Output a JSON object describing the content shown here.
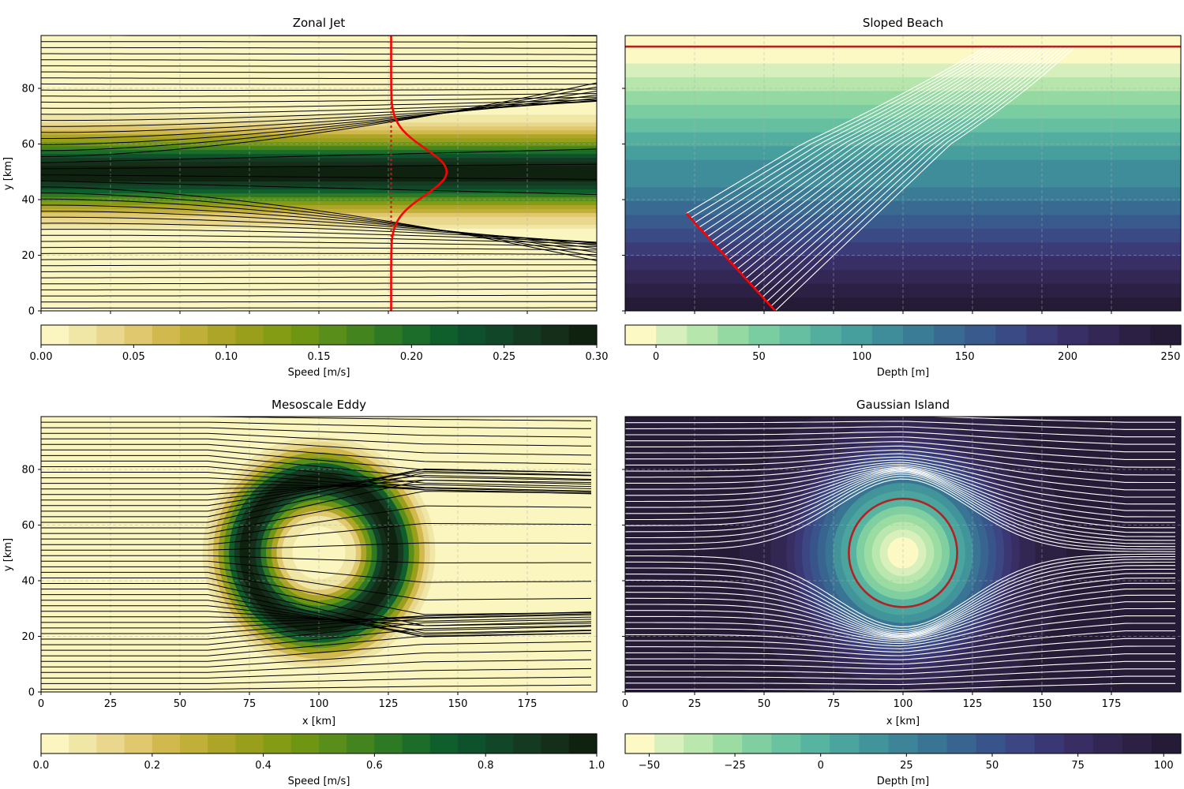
{
  "chart_data": [
    {
      "type": "heatmap",
      "title": "Zonal Jet",
      "xlabel": "",
      "ylabel": "y [km]",
      "xlim": [
        0,
        200
      ],
      "ylim": [
        0,
        99
      ],
      "xticks": [
        "0",
        "25",
        "50",
        "75",
        "100",
        "125",
        "150",
        "175"
      ],
      "xtick_values": [
        0,
        25,
        50,
        75,
        100,
        125,
        150,
        175
      ],
      "show_xticklabels": false,
      "yticks": [
        "0",
        "20",
        "40",
        "60",
        "80"
      ],
      "ytick_values": [
        0,
        20,
        40,
        60,
        80
      ],
      "show_yticklabels": true,
      "grid": true,
      "field": {
        "kind": "jet",
        "y0": 50,
        "width": 12,
        "max": 0.3
      },
      "streamlines": {
        "color": "#000000",
        "count": 46
      },
      "colorbar": {
        "label": "Speed [m/s]",
        "min": 0,
        "max": 0.3,
        "ticks": [
          "0.00",
          "0.05",
          "0.10",
          "0.15",
          "0.20",
          "0.25",
          "0.30"
        ],
        "tick_values": [
          0,
          0.05,
          0.1,
          0.15,
          0.2,
          0.25,
          0.3
        ],
        "levels": 20,
        "cmap": "speed"
      },
      "overlay": {
        "kind": "velocity-profile",
        "color": "#ff0000",
        "x_base": 126,
        "amplitude_km": 20
      }
    },
    {
      "type": "heatmap",
      "title": "Sloped Beach",
      "xlabel": "",
      "ylabel": "",
      "xlim": [
        0,
        200
      ],
      "ylim": [
        0,
        99
      ],
      "xticks": [
        "0",
        "25",
        "50",
        "75",
        "100",
        "125",
        "150",
        "175"
      ],
      "xtick_values": [
        0,
        25,
        50,
        75,
        100,
        125,
        150,
        175
      ],
      "show_xticklabels": false,
      "yticks": [
        "0",
        "20",
        "40",
        "60",
        "80"
      ],
      "ytick_values": [
        0,
        20,
        40,
        60,
        80
      ],
      "show_yticklabels": false,
      "grid": true,
      "field": {
        "kind": "slope",
        "depth_at_bottom": 250,
        "depth_at_top": -15
      },
      "streamlines": {
        "color": "#ffffff",
        "count": 22
      },
      "colorbar": {
        "label": "Depth [m]",
        "min": -15,
        "max": 255,
        "ticks": [
          "0",
          "50",
          "100",
          "150",
          "200",
          "250"
        ],
        "tick_values": [
          0,
          50,
          100,
          150,
          200,
          250
        ],
        "levels": 18,
        "cmap": "deep"
      },
      "overlay": {
        "kind": "shoreline",
        "color": "#b22222",
        "y": 95,
        "crest_color": "#ff0000"
      }
    },
    {
      "type": "heatmap",
      "title": "Mesoscale Eddy",
      "xlabel": "x [km]",
      "ylabel": "y [km]",
      "xlim": [
        0,
        200
      ],
      "ylim": [
        0,
        99
      ],
      "xticks": [
        "0",
        "25",
        "50",
        "75",
        "100",
        "125",
        "150",
        "175"
      ],
      "xtick_values": [
        0,
        25,
        50,
        75,
        100,
        125,
        150,
        175
      ],
      "show_xticklabels": true,
      "yticks": [
        "0",
        "20",
        "40",
        "60",
        "80"
      ],
      "ytick_values": [
        0,
        20,
        40,
        60,
        80
      ],
      "show_yticklabels": true,
      "grid": true,
      "field": {
        "kind": "eddy",
        "cx": 100,
        "cy": 50,
        "r0": 27,
        "width": 9,
        "max": 1.0
      },
      "streamlines": {
        "color": "#000000",
        "count": 50
      },
      "colorbar": {
        "label": "Speed [m/s]",
        "min": 0,
        "max": 1.0,
        "ticks": [
          "0.0",
          "0.2",
          "0.4",
          "0.6",
          "0.8",
          "1.0"
        ],
        "tick_values": [
          0,
          0.2,
          0.4,
          0.6,
          0.8,
          1.0
        ],
        "levels": 20,
        "cmap": "speed"
      }
    },
    {
      "type": "heatmap",
      "title": "Gaussian Island",
      "xlabel": "x [km]",
      "ylabel": "",
      "xlim": [
        0,
        200
      ],
      "ylim": [
        0,
        99
      ],
      "xticks": [
        "0",
        "25",
        "50",
        "75",
        "100",
        "125",
        "150",
        "175"
      ],
      "xtick_values": [
        0,
        25,
        50,
        75,
        100,
        125,
        150,
        175
      ],
      "show_xticklabels": true,
      "yticks": [
        "0",
        "20",
        "40",
        "60",
        "80"
      ],
      "ytick_values": [
        0,
        20,
        40,
        60,
        80
      ],
      "show_yticklabels": false,
      "grid": true,
      "field": {
        "kind": "island",
        "cx": 100,
        "cy": 50,
        "sigma": 28,
        "depth_far": 100,
        "depth_center": -55
      },
      "streamlines": {
        "color": "#ffffff",
        "count": 46
      },
      "colorbar": {
        "label": "Depth [m]",
        "min": -57,
        "max": 105,
        "ticks": [
          "−50",
          "−25",
          "0",
          "25",
          "50",
          "75",
          "100"
        ],
        "tick_values": [
          -50,
          -25,
          0,
          25,
          50,
          75,
          100
        ],
        "levels": 19,
        "cmap": "deep"
      },
      "overlay": {
        "kind": "coastline",
        "color": "#b22222",
        "cx": 100,
        "cy": 50,
        "r": 19.5
      }
    }
  ]
}
